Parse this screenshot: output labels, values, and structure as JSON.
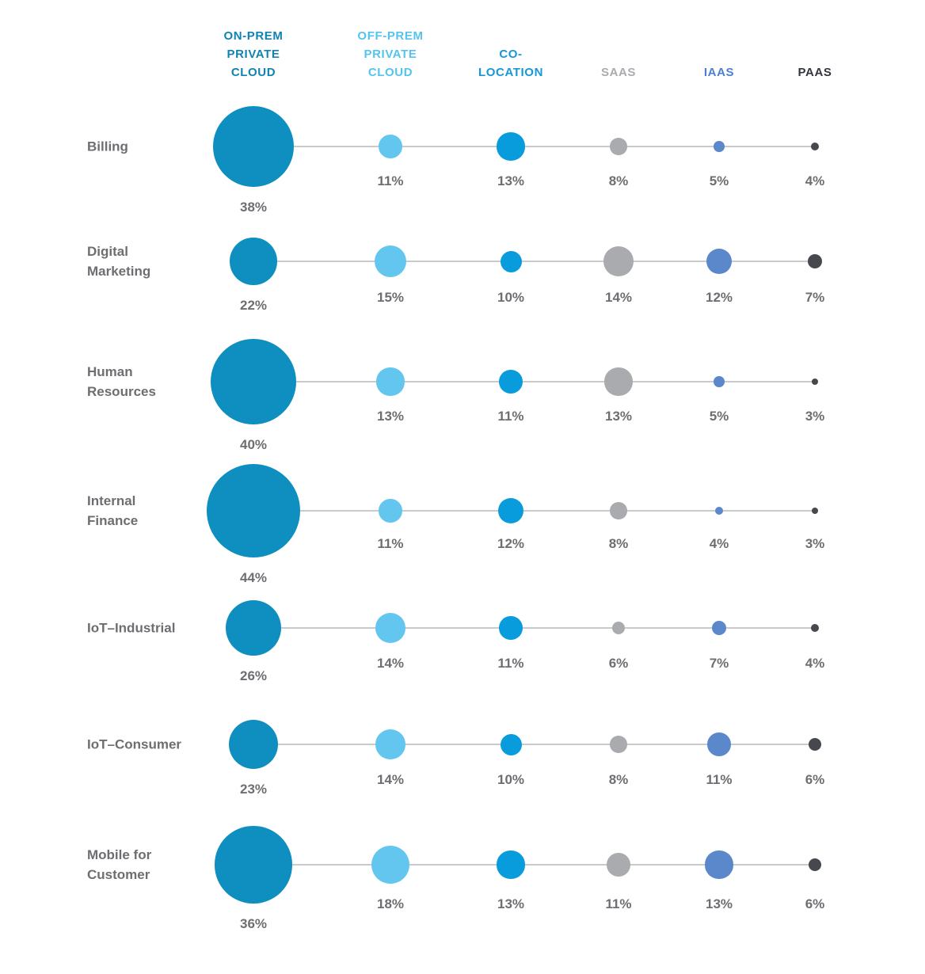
{
  "chart_data": {
    "type": "bubble",
    "description": "Bubble matrix of workload deployment venue percentages",
    "value_suffix": "%",
    "grid": false,
    "legend_position": "top-column-headers",
    "background": "#FFFFFF",
    "row_label_color": "#6D6E71",
    "value_label_color": "#6D6E71",
    "connector_color": "#C9CACB",
    "columns": [
      {
        "label": "ON-PREM PRIVATE CLOUD",
        "header_lines": [
          "ON-PREM",
          "PRIVATE",
          "CLOUD"
        ],
        "bubble_color": "#0E8FBF",
        "header_color": "#0F83B3"
      },
      {
        "label": "OFF-PREM PRIVATE CLOUD",
        "header_lines": [
          "OFF-PREM",
          "PRIVATE",
          "CLOUD"
        ],
        "bubble_color": "#63C6EE",
        "header_color": "#55C3F0"
      },
      {
        "label": "CO-LOCATION",
        "header_lines": [
          "CO-",
          "LOCATION"
        ],
        "bubble_color": "#099CDD",
        "header_color": "#1697D8"
      },
      {
        "label": "SAAS",
        "header_lines": [
          "SAAS"
        ],
        "bubble_color": "#A9ABAE",
        "header_color": "#A9ABAE"
      },
      {
        "label": "IAAS",
        "header_lines": [
          "IAAS"
        ],
        "bubble_color": "#5B88CB",
        "header_color": "#4C80CE"
      },
      {
        "label": "PAAS",
        "header_lines": [
          "PAAS"
        ],
        "bubble_color": "#46484E",
        "header_color": "#33363D"
      }
    ],
    "rows": [
      {
        "label": "Billing",
        "label_lines": [
          "Billing"
        ],
        "values": [
          38,
          11,
          13,
          8,
          5,
          4
        ]
      },
      {
        "label": "Digital Marketing",
        "label_lines": [
          "Digital",
          "Marketing"
        ],
        "values": [
          22,
          15,
          10,
          14,
          12,
          7
        ]
      },
      {
        "label": "Human Resources",
        "label_lines": [
          "Human",
          "Resources"
        ],
        "values": [
          40,
          13,
          11,
          13,
          5,
          3
        ]
      },
      {
        "label": "Internal Finance",
        "label_lines": [
          "Internal",
          "Finance"
        ],
        "values": [
          44,
          11,
          12,
          8,
          4,
          3
        ]
      },
      {
        "label": "IoT–Industrial",
        "label_lines": [
          "IoT–Industrial"
        ],
        "values": [
          26,
          14,
          11,
          6,
          7,
          4
        ]
      },
      {
        "label": "IoT–Consumer",
        "label_lines": [
          "IoT–Consumer"
        ],
        "values": [
          23,
          14,
          10,
          8,
          11,
          6
        ]
      },
      {
        "label": "Mobile for Customer",
        "label_lines": [
          "Mobile for",
          "Customer"
        ],
        "values": [
          36,
          18,
          13,
          11,
          13,
          6
        ]
      }
    ]
  }
}
